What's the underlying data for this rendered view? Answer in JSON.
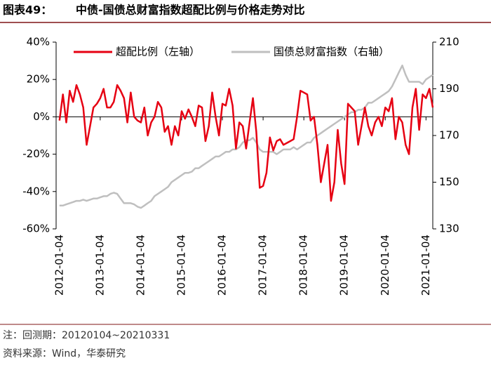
{
  "chart_data": {
    "type": "line",
    "title_label": "图表49：",
    "title": "中债-国债总财富指数超配比例与价格走势对比",
    "notes": [
      "注：回测期：20120104~20210331",
      "资料来源：Wind，华泰研究"
    ],
    "xlim": [
      "2011-12",
      "2021-03"
    ],
    "xticks": [
      {
        "value": "2012-01",
        "label": "2012-01-04"
      },
      {
        "value": "2013-01",
        "label": "2013-01-04"
      },
      {
        "value": "2014-01",
        "label": "2014-01-04"
      },
      {
        "value": "2015-01",
        "label": "2015-01-04"
      },
      {
        "value": "2016-01",
        "label": "2016-01-04"
      },
      {
        "value": "2017-01",
        "label": "2017-01-04"
      },
      {
        "value": "2018-01",
        "label": "2018-01-04"
      },
      {
        "value": "2019-01",
        "label": "2019-01-04"
      },
      {
        "value": "2020-01",
        "label": "2020-01-04"
      },
      {
        "value": "2021-01",
        "label": "2021-01-04"
      }
    ],
    "ylim": [
      -60,
      40
    ],
    "yticks": [
      {
        "value": -60,
        "label": "-60%"
      },
      {
        "value": -40,
        "label": "-40%"
      },
      {
        "value": -20,
        "label": "-20%"
      },
      {
        "value": 0,
        "label": "0%"
      },
      {
        "value": 20,
        "label": "20%"
      },
      {
        "value": 40,
        "label": "40%"
      }
    ],
    "y2lim": [
      130,
      210
    ],
    "y2ticks": [
      130,
      150,
      170,
      190,
      210
    ],
    "x": [
      "2012-01",
      "2012-02",
      "2012-03",
      "2012-04",
      "2012-05",
      "2012-06",
      "2012-07",
      "2012-08",
      "2012-09",
      "2012-10",
      "2012-11",
      "2012-12",
      "2013-01",
      "2013-02",
      "2013-03",
      "2013-04",
      "2013-05",
      "2013-06",
      "2013-07",
      "2013-08",
      "2013-09",
      "2013-10",
      "2013-11",
      "2013-12",
      "2014-01",
      "2014-02",
      "2014-03",
      "2014-04",
      "2014-05",
      "2014-06",
      "2014-07",
      "2014-08",
      "2014-09",
      "2014-10",
      "2014-11",
      "2014-12",
      "2015-01",
      "2015-02",
      "2015-03",
      "2015-04",
      "2015-05",
      "2015-06",
      "2015-07",
      "2015-08",
      "2015-09",
      "2015-10",
      "2015-11",
      "2015-12",
      "2016-01",
      "2016-02",
      "2016-03",
      "2016-04",
      "2016-05",
      "2016-06",
      "2016-07",
      "2016-08",
      "2016-09",
      "2016-10",
      "2016-11",
      "2016-12",
      "2017-01",
      "2017-02",
      "2017-03",
      "2017-04",
      "2017-05",
      "2017-06",
      "2017-07",
      "2017-08",
      "2017-09",
      "2017-10",
      "2017-11",
      "2017-12",
      "2018-01",
      "2018-02",
      "2018-03",
      "2018-04",
      "2018-05",
      "2018-06",
      "2018-07",
      "2018-08",
      "2018-09",
      "2018-10",
      "2018-11",
      "2018-12",
      "2019-01",
      "2019-02",
      "2019-03",
      "2019-04",
      "2019-05",
      "2019-06",
      "2019-07",
      "2019-08",
      "2019-09",
      "2019-10",
      "2019-11",
      "2019-12",
      "2020-01",
      "2020-02",
      "2020-03",
      "2020-04",
      "2020-05",
      "2020-06",
      "2020-07",
      "2020-08",
      "2020-09",
      "2020-10",
      "2020-11",
      "2020-12",
      "2021-01",
      "2021-02",
      "2021-03"
    ],
    "series": [
      {
        "name": "超配比例（左轴）",
        "color": "#e60012",
        "axis": "y",
        "values": [
          -2,
          12,
          -3,
          14,
          8,
          17,
          12,
          5,
          -15,
          -5,
          5,
          7,
          10,
          15,
          5,
          5,
          8,
          17,
          14,
          10,
          -3,
          13,
          0,
          -2,
          -3,
          5,
          -10,
          -3,
          0,
          8,
          5,
          -8,
          -5,
          -15,
          -5,
          -10,
          3,
          -1,
          4,
          0,
          -5,
          6,
          5,
          -13,
          -5,
          13,
          0,
          -10,
          7,
          6,
          15,
          6,
          -17,
          -3,
          -5,
          -17,
          -3,
          10,
          -8,
          -38,
          -37,
          -30,
          -11,
          -18,
          -13,
          -12,
          -15,
          -14,
          -13,
          -12,
          0,
          14,
          13,
          12,
          -2,
          0,
          -15,
          -35,
          -25,
          -15,
          -45,
          -35,
          -7,
          -25,
          -36,
          7,
          5,
          3,
          -15,
          -5,
          5,
          -5,
          -10,
          -3,
          0,
          -5,
          5,
          3,
          10,
          -12,
          0,
          -3,
          -15,
          -20,
          5,
          15,
          -7,
          12,
          10,
          15,
          5
        ]
      },
      {
        "name": "国债总财富指数（右轴）",
        "color": "#bfbfbf",
        "axis": "y2",
        "values": [
          140,
          140,
          140.5,
          141,
          141.5,
          142,
          142,
          142.5,
          142,
          142.5,
          143,
          143,
          143.5,
          144,
          144,
          145,
          145.5,
          145,
          143,
          141,
          141,
          141,
          140.5,
          139.5,
          139,
          140,
          141,
          142,
          144,
          145,
          146,
          147,
          148,
          150,
          151,
          152,
          153,
          154,
          154,
          154.5,
          156,
          156,
          157,
          158,
          159,
          160,
          161,
          161,
          162,
          163,
          163,
          164,
          164,
          165,
          167,
          168,
          168,
          169,
          167,
          164,
          163,
          163,
          163,
          163,
          162,
          163,
          164,
          164,
          164,
          165,
          164,
          165,
          166,
          167,
          167,
          169,
          170,
          171,
          172,
          173,
          174,
          175,
          176,
          177,
          178,
          179,
          180,
          180,
          181,
          181,
          182,
          184,
          184,
          185,
          186,
          187,
          188,
          189,
          191,
          194,
          197,
          200,
          196,
          193,
          193,
          193,
          193,
          192,
          194,
          195,
          196
        ]
      }
    ]
  }
}
